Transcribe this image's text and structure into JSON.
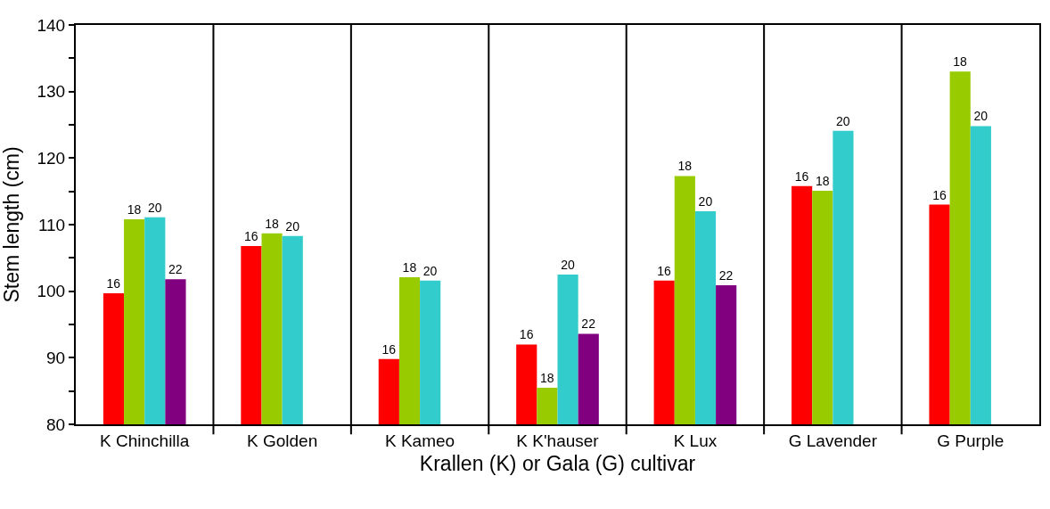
{
  "chart_data": {
    "type": "bar",
    "xlabel": "Krallen (K) or Gala (G) cultivar",
    "ylabel": "Stem length (cm)",
    "categories": [
      "K Chinchilla",
      "K Golden",
      "K Kameo",
      "K K'hauser",
      "K Lux",
      "G Lavender",
      "G Purple"
    ],
    "series": [
      {
        "name": "16",
        "color": "#ff0000",
        "values": [
          99.7,
          106.8,
          89.8,
          92.0,
          101.6,
          115.8,
          113.0
        ]
      },
      {
        "name": "18",
        "color": "#99cc00",
        "values": [
          110.8,
          108.7,
          102.1,
          85.5,
          117.3,
          115.1,
          133.0
        ]
      },
      {
        "name": "20",
        "color": "#33cccc",
        "values": [
          111.1,
          108.3,
          101.6,
          102.5,
          112.0,
          124.1,
          124.8
        ]
      },
      {
        "name": "22",
        "color": "#800080",
        "values": [
          101.8,
          null,
          null,
          93.6,
          100.9,
          null,
          null
        ]
      }
    ],
    "ylim": [
      80,
      140
    ],
    "yticks": [
      80,
      {
        "value": 85,
        "label": null
      },
      90,
      {
        "value": 95,
        "label": null
      },
      100,
      {
        "value": 105,
        "label": null
      },
      110,
      {
        "value": 115,
        "label": null
      },
      120,
      {
        "value": 125,
        "label": null
      },
      130,
      {
        "value": 135,
        "label": null
      },
      140
    ],
    "grid": "x",
    "legend": false
  }
}
